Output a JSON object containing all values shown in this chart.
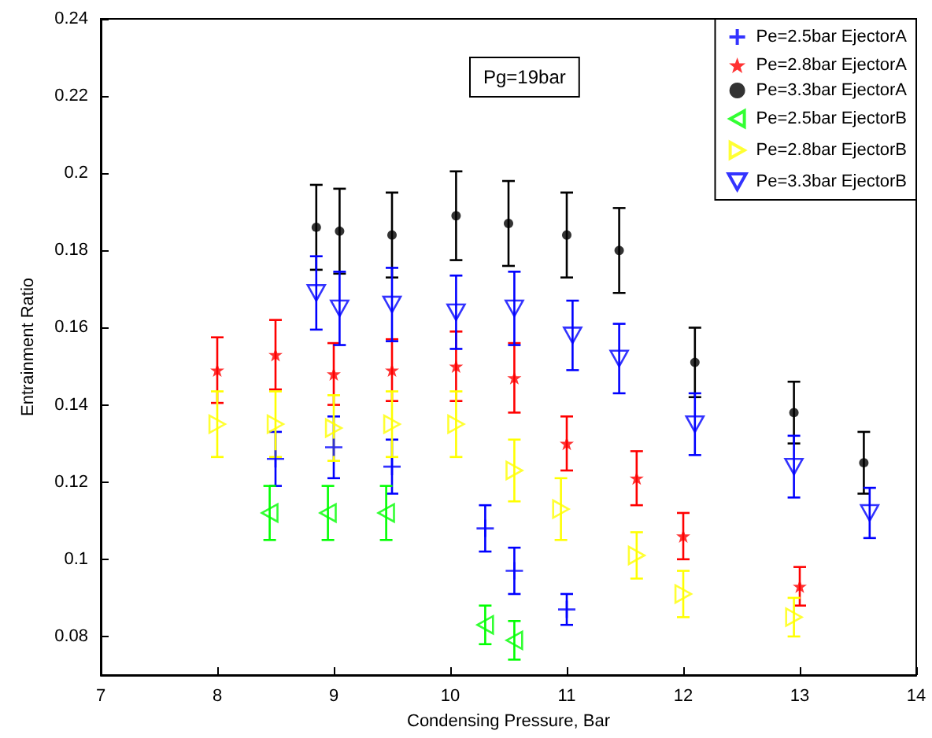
{
  "chart_data": {
    "type": "scatter",
    "xlabel": "Condensing Pressure, Bar",
    "ylabel": "Entrainment Ratio",
    "annotations": [
      "Pg=19bar"
    ],
    "xlim": [
      7,
      14
    ],
    "xticks": [
      7,
      8,
      9,
      10,
      11,
      12,
      13,
      14
    ],
    "ylim": [
      0.07,
      0.24
    ],
    "yticks": [
      0.08,
      0.1,
      0.12,
      0.14,
      0.16,
      0.18,
      0.2,
      0.22,
      0.24
    ],
    "grid": false,
    "legend": "top right",
    "series": [
      {
        "name": "Pe=2.5bar EjectorA",
        "color": "#0000ff",
        "marker": "cross",
        "x": [
          8.5,
          9,
          9.5,
          10.3,
          10.55,
          11
        ],
        "values": [
          0.126,
          0.129,
          0.124,
          0.108,
          0.097,
          0.087
        ],
        "errors": [
          0.007,
          0.008,
          0.007,
          0.006,
          0.006,
          0.004
        ]
      },
      {
        "name": "Pe=2.8bar EjectorA",
        "color": "#ff0000",
        "marker": "star",
        "x": [
          8,
          8.5,
          9,
          9.5,
          10.05,
          10.55,
          11,
          11.6,
          12,
          13
        ],
        "values": [
          0.149,
          0.153,
          0.148,
          0.149,
          0.15,
          0.147,
          0.13,
          0.121,
          0.106,
          0.093
        ],
        "errors": [
          0.0085,
          0.009,
          0.008,
          0.008,
          0.009,
          0.009,
          0.007,
          0.007,
          0.006,
          0.005
        ]
      },
      {
        "name": "Pe=3.3bar EjectorA",
        "color": "#000000",
        "marker": "circle",
        "x": [
          8.85,
          9.05,
          9.5,
          10.05,
          10.5,
          11,
          11.45,
          12.1,
          12.95,
          13.55
        ],
        "values": [
          0.186,
          0.185,
          0.184,
          0.189,
          0.187,
          0.184,
          0.18,
          0.151,
          0.138,
          0.125
        ],
        "errors": [
          0.011,
          0.011,
          0.011,
          0.0115,
          0.011,
          0.011,
          0.011,
          0.009,
          0.008,
          0.008
        ]
      },
      {
        "name": "Pe=2.5bar EjectorB",
        "color": "#00ff00",
        "marker": "triangle",
        "x": [
          8.45,
          8.95,
          9.45,
          10.3,
          10.55
        ],
        "values": [
          0.112,
          0.112,
          0.112,
          0.083,
          0.079
        ],
        "errors": [
          0.007,
          0.007,
          0.007,
          0.005,
          0.005
        ]
      },
      {
        "name": "Pe=2.8bar EjectorB",
        "color": "#ffff00",
        "marker": "triangle",
        "x": [
          8,
          8.5,
          9,
          9.5,
          10.05,
          10.55,
          10.95,
          11.6,
          12,
          12.95
        ],
        "values": [
          0.135,
          0.135,
          0.134,
          0.135,
          0.135,
          0.123,
          0.113,
          0.101,
          0.091,
          0.085
        ],
        "errors": [
          0.0085,
          0.0085,
          0.0085,
          0.0085,
          0.0085,
          0.008,
          0.008,
          0.006,
          0.006,
          0.005
        ]
      },
      {
        "name": "Pe=3.3bar EjectorB",
        "color": "#0000ff",
        "marker": "triangle",
        "x": [
          8.85,
          9.05,
          9.5,
          10.05,
          10.55,
          11.05,
          11.45,
          12.1,
          12.95,
          13.6
        ],
        "values": [
          0.169,
          0.165,
          0.166,
          0.164,
          0.165,
          0.158,
          0.152,
          0.135,
          0.124,
          0.112
        ],
        "errors": [
          0.0095,
          0.0095,
          0.0095,
          0.0095,
          0.0095,
          0.009,
          0.009,
          0.008,
          0.008,
          0.0065
        ]
      }
    ]
  }
}
